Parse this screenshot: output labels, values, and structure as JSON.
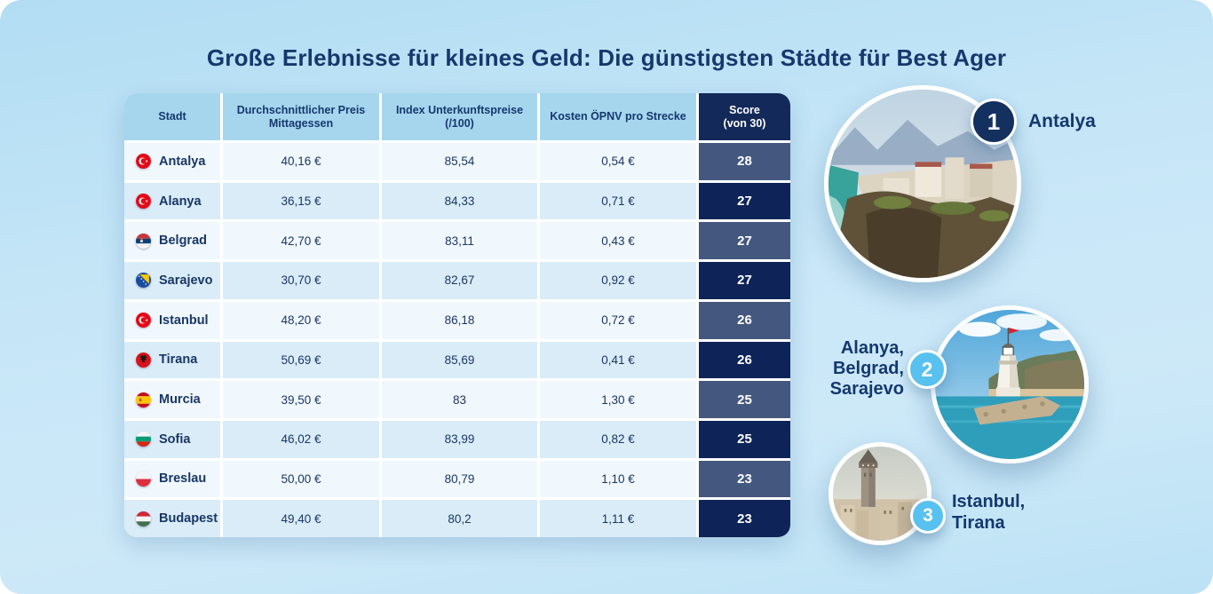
{
  "title": "Große Erlebnisse für kleines Geld: Die günstigsten Städte für Best Ager",
  "table": {
    "headers": [
      {
        "id": "stadt",
        "lines": [
          "Stadt"
        ]
      },
      {
        "id": "lunch",
        "lines": [
          "Durchschnittlicher Preis",
          "Mittagessen"
        ]
      },
      {
        "id": "index",
        "lines": [
          "Index Unterkunftspreise",
          "(/100)"
        ]
      },
      {
        "id": "transit",
        "lines": [
          "Kosten ÖPNV pro Strecke"
        ]
      },
      {
        "id": "score",
        "lines": [
          "Score",
          "(von 30)"
        ]
      }
    ],
    "rows": [
      {
        "city": "Antalya",
        "flag": "turkey",
        "lunch": "40,16 €",
        "index": "85,54",
        "transit": "0,54 €",
        "score": "28"
      },
      {
        "city": "Alanya",
        "flag": "turkey",
        "lunch": "36,15 €",
        "index": "84,33",
        "transit": "0,71 €",
        "score": "27"
      },
      {
        "city": "Belgrad",
        "flag": "serbia",
        "lunch": "42,70 €",
        "index": "83,11",
        "transit": "0,43 €",
        "score": "27"
      },
      {
        "city": "Sarajevo",
        "flag": "bosnia",
        "lunch": "30,70 €",
        "index": "82,67",
        "transit": "0,92 €",
        "score": "27"
      },
      {
        "city": "Istanbul",
        "flag": "turkey",
        "lunch": "48,20 €",
        "index": "86,18",
        "transit": "0,72 €",
        "score": "26"
      },
      {
        "city": "Tirana",
        "flag": "albania",
        "lunch": "50,69 €",
        "index": "85,69",
        "transit": "0,41 €",
        "score": "26"
      },
      {
        "city": "Murcia",
        "flag": "spain",
        "lunch": "39,50 €",
        "index": "83",
        "transit": "1,30 €",
        "score": "25"
      },
      {
        "city": "Sofia",
        "flag": "bulgaria",
        "lunch": "46,02 €",
        "index": "83,99",
        "transit": "0,82 €",
        "score": "25"
      },
      {
        "city": "Breslau",
        "flag": "poland",
        "lunch": "50,00 €",
        "index": "80,79",
        "transit": "1,10 €",
        "score": "23"
      },
      {
        "city": "Budapest",
        "flag": "hungary",
        "lunch": "49,40 €",
        "index": "80,2",
        "transit": "1,11 €",
        "score": "23"
      }
    ]
  },
  "rankings": [
    {
      "rank": "1",
      "label_lines": [
        "Antalya"
      ],
      "image": "antalya-coast-photo"
    },
    {
      "rank": "2",
      "label_lines": [
        "Alanya,",
        "Belgrad,",
        "Sarajevo"
      ],
      "image": "alanya-lighthouse-photo"
    },
    {
      "rank": "3",
      "label_lines": [
        "Istanbul,",
        "Tirana"
      ],
      "image": "istanbul-galata-photo"
    }
  ],
  "colors": {
    "background_top": "#B2DDF3",
    "background_bottom": "#BCE2F5",
    "title_text": "#16386E",
    "header_cell_bg": "#A6D6EE",
    "score_header_bg": "#13295A",
    "row_light_bg": "#F0F8FD",
    "row_shaded_bg": "#D9ECF8",
    "score_cell_light_bg": "#44587F",
    "score_cell_dark_bg": "#0E2458",
    "cell_text": "#1A3766",
    "score_text": "#FFFFFF",
    "badge_navy": "#14305F",
    "badge_blue": "#58C1EF"
  },
  "chart_data": {
    "type": "table",
    "title": "Große Erlebnisse für kleines Geld: Die günstigsten Städte für Best Ager",
    "columns": [
      "Stadt",
      "Durchschnittlicher Preis Mittagessen",
      "Index Unterkunftspreise (/100)",
      "Kosten ÖPNV pro Strecke",
      "Score (von 30)"
    ],
    "rows": [
      [
        "Antalya",
        "40,16 €",
        "85,54",
        "0,54 €",
        "28"
      ],
      [
        "Alanya",
        "36,15 €",
        "84,33",
        "0,71 €",
        "27"
      ],
      [
        "Belgrad",
        "42,70 €",
        "83,11",
        "0,43 €",
        "27"
      ],
      [
        "Sarajevo",
        "30,70 €",
        "82,67",
        "0,92 €",
        "27"
      ],
      [
        "Istanbul",
        "48,20 €",
        "86,18",
        "0,72 €",
        "26"
      ],
      [
        "Tirana",
        "50,69 €",
        "85,69",
        "0,41 €",
        "26"
      ],
      [
        "Murcia",
        "39,50 €",
        "83",
        "1,30 €",
        "25"
      ],
      [
        "Sofia",
        "46,02 €",
        "83,99",
        "0,82 €",
        "25"
      ],
      [
        "Breslau",
        "50,00 €",
        "80,79",
        "1,10 €",
        "23"
      ],
      [
        "Budapest",
        "49,40 €",
        "80,2",
        "1,11 €",
        "23"
      ]
    ],
    "annotations": [
      "1: Antalya",
      "2: Alanya, Belgrad, Sarajevo",
      "3: Istanbul, Tirana"
    ]
  }
}
